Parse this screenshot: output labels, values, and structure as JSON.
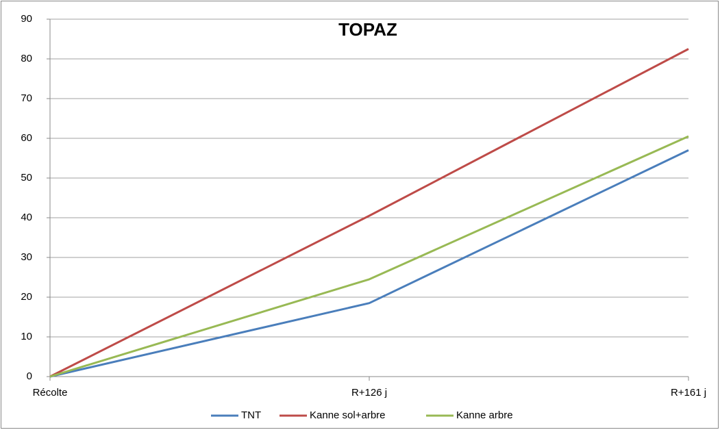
{
  "chart_data": {
    "type": "line",
    "title": "TOPAZ",
    "categories": [
      "Récolte",
      "R+126 j",
      "R+161 j"
    ],
    "series": [
      {
        "name": "TNT",
        "color": "#4a7ebb",
        "values": [
          0,
          18.5,
          57
        ]
      },
      {
        "name": "Kanne sol+arbre",
        "color": "#be4b48",
        "values": [
          0,
          40.5,
          82.5
        ]
      },
      {
        "name": "Kanne arbre",
        "color": "#98b954",
        "values": [
          0,
          24.5,
          60.5
        ]
      }
    ],
    "ylim": [
      0,
      90
    ],
    "yticks": [
      0,
      10,
      20,
      30,
      40,
      50,
      60,
      70,
      80,
      90
    ],
    "grid": true,
    "legend": "bottom"
  }
}
